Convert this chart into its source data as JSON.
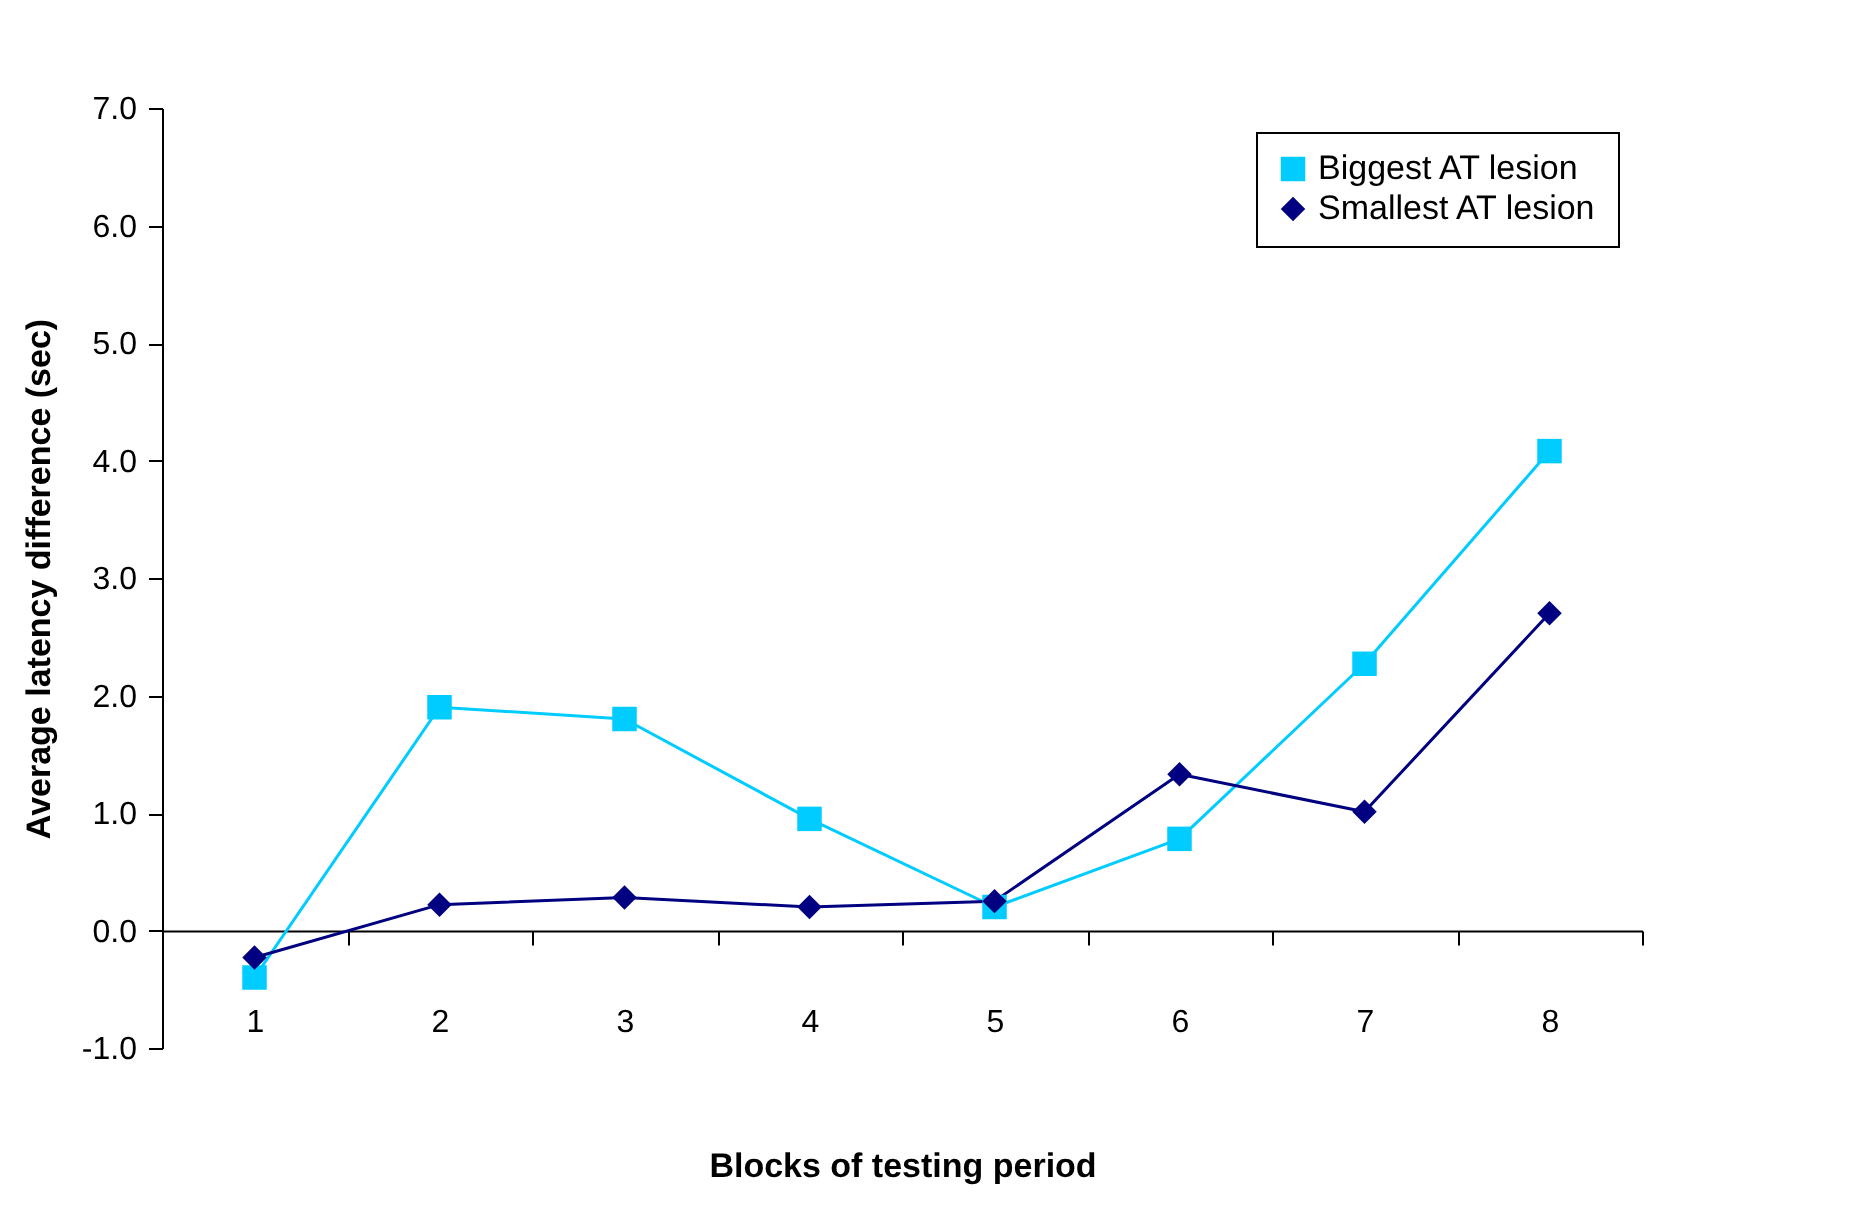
{
  "chart_data": {
    "type": "line",
    "xlabel": "Blocks of testing period",
    "ylabel": "Average latency difference (sec)",
    "categories": [
      "1",
      "2",
      "3",
      "4",
      "5",
      "6",
      "7",
      "8"
    ],
    "series": [
      {
        "name": "Biggest AT lesion",
        "color": "#00ccff",
        "marker": "square",
        "values": [
          -0.4,
          1.9,
          1.8,
          0.95,
          0.2,
          0.78,
          2.27,
          4.08
        ]
      },
      {
        "name": "Smallest AT lesion",
        "color": "#000080",
        "marker": "diamond",
        "values": [
          -0.23,
          0.22,
          0.28,
          0.2,
          0.25,
          1.33,
          1.01,
          2.7
        ]
      }
    ],
    "ylim": [
      -1.0,
      7.0
    ],
    "yticks": [
      {
        "value": -1,
        "label": "-1.0"
      },
      {
        "value": 0,
        "label": "0.0"
      },
      {
        "value": 1,
        "label": "1.0"
      },
      {
        "value": 2,
        "label": "2.0"
      },
      {
        "value": 3,
        "label": "3.0"
      },
      {
        "value": 4,
        "label": "4.0"
      },
      {
        "value": 5,
        "label": "5.0"
      },
      {
        "value": 6,
        "label": "6.0"
      },
      {
        "value": 7,
        "label": "7.0"
      }
    ],
    "grid": false,
    "legend": "top right",
    "line_style": "solid"
  }
}
